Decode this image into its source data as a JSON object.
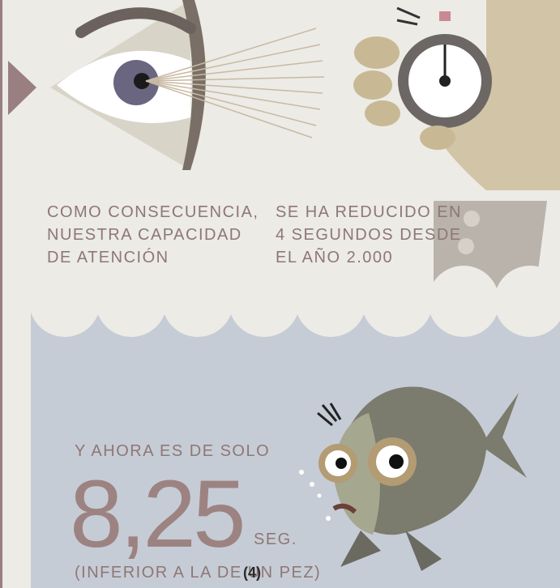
{
  "left_caption": [
    "COMO CONSECUENCIA,",
    "NUESTRA CAPACIDAD",
    "DE ATENCIÓN"
  ],
  "right_caption": [
    "SE HA REDUCIDO EN",
    "4 SEGUNDOS DESDE",
    "EL AÑO 2.000"
  ],
  "bottom": {
    "intro": "Y AHORA ES DE SOLO",
    "value": "8,25",
    "unit": "SEG.",
    "note": "(INFERIOR A LA DE UN PEZ)",
    "ref": "(4)"
  }
}
